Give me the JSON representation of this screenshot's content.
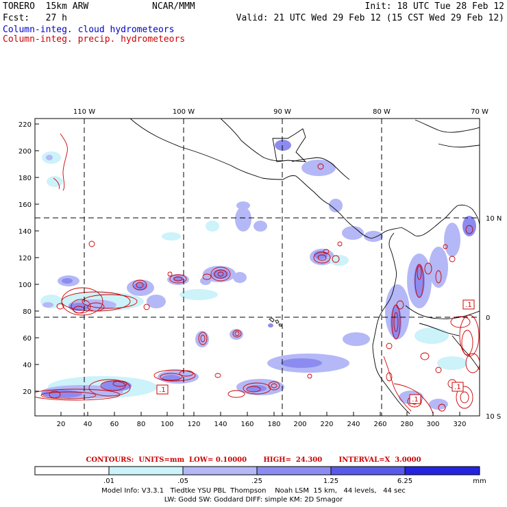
{
  "header": {
    "model": "TORERO  15km ARW",
    "org": "NCAR/MMM",
    "init": "Init: 18 UTC Tue 28 Feb 12",
    "fcst": "Fcst:   27 h",
    "valid": "Valid: 21 UTC Wed 29 Feb 12 (15 CST Wed 29 Feb 12)",
    "field1": "Column-integ. cloud hydrometeors",
    "field2": "Column-integ. precip. hydrometeors",
    "field1_color": "#0000cc",
    "field2_color": "#cc0000"
  },
  "map": {
    "top_lon_labels": [
      "110 W",
      "100 W",
      "90 W",
      "80 W",
      "70 W"
    ],
    "left_y_labels": [
      "220",
      "200",
      "180",
      "160",
      "140",
      "120",
      "100",
      "80",
      "60",
      "40",
      "20"
    ],
    "bottom_x_labels": [
      "20",
      "40",
      "60",
      "80",
      "100",
      "120",
      "140",
      "160",
      "180",
      "200",
      "220",
      "240",
      "260",
      "280",
      "300",
      "320"
    ],
    "right_lat_labels": [
      "10 N",
      "0",
      "10 S"
    ],
    "cloud_label_value": ".1"
  },
  "contour_info": "CONTOURS:  UNITS=mm  LOW= 0.10000       HIGH=  24.300       INTERVAL=X  3.0000",
  "colorbar": {
    "labels": [
      ".01",
      ".05",
      ".25",
      "1.25",
      "6.25"
    ],
    "unit": "mm",
    "colors": [
      "#ffffff",
      "#ccf2fa",
      "#b4b8f6",
      "#8c8cf0",
      "#5a5ae8",
      "#2424e0"
    ]
  },
  "model_info": {
    "line1": "Model Info: V3.3.1   Tiedtke YSU PBL  Thompson    Noah LSM  15 km,   44 levels,   44 sec",
    "line2": "LW: Godd SW: Goddard DIFF: simple KM: 2D Smagor"
  }
}
